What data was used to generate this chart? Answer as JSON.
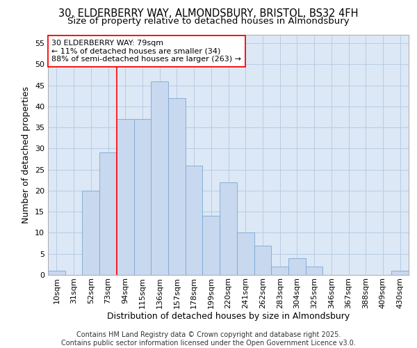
{
  "title_line1": "30, ELDERBERRY WAY, ALMONDSBURY, BRISTOL, BS32 4FH",
  "title_line2": "Size of property relative to detached houses in Almondsbury",
  "xlabel": "Distribution of detached houses by size in Almondsbury",
  "ylabel": "Number of detached properties",
  "categories": [
    "10sqm",
    "31sqm",
    "52sqm",
    "73sqm",
    "94sqm",
    "115sqm",
    "136sqm",
    "157sqm",
    "178sqm",
    "199sqm",
    "220sqm",
    "241sqm",
    "262sqm",
    "283sqm",
    "304sqm",
    "325sqm",
    "346sqm",
    "367sqm",
    "388sqm",
    "409sqm",
    "430sqm"
  ],
  "values": [
    1,
    0,
    20,
    29,
    37,
    37,
    46,
    42,
    26,
    14,
    22,
    10,
    7,
    2,
    4,
    2,
    0,
    0,
    0,
    0,
    1
  ],
  "bar_color": "#c8d8ef",
  "bar_edge_color": "#7ba8d4",
  "grid_color": "#b8cce4",
  "bg_color": "#dce8f5",
  "fig_bg_color": "#ffffff",
  "annotation_text": "30 ELDERBERRY WAY: 79sqm\n← 11% of detached houses are smaller (34)\n88% of semi-detached houses are larger (263) →",
  "annotation_box_color": "white",
  "annotation_box_edge": "red",
  "redline_x": 3.5,
  "ylim": [
    0,
    57
  ],
  "yticks": [
    0,
    5,
    10,
    15,
    20,
    25,
    30,
    35,
    40,
    45,
    50,
    55
  ],
  "footer": "Contains HM Land Registry data © Crown copyright and database right 2025.\nContains public sector information licensed under the Open Government Licence v3.0.",
  "title_fontsize": 10.5,
  "subtitle_fontsize": 9.5,
  "axis_label_fontsize": 9,
  "tick_fontsize": 8,
  "annotation_fontsize": 8,
  "footer_fontsize": 7
}
